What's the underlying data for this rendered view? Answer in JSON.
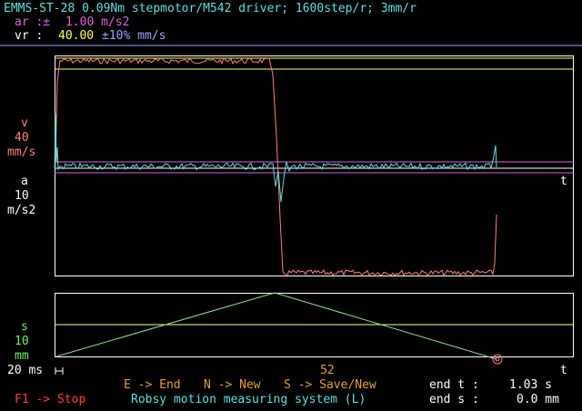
{
  "header": {
    "title": "EMMS-ST-28 0.09Nm stepmotor/M542 driver; 1600step/r; 3mm/r",
    "ar_label": "ar :±",
    "ar_value": "1.00 m/s2",
    "vr_label": "vr :",
    "vr_value": "40.00",
    "vr_tol": "±10% mm/s"
  },
  "plot_top": {
    "v_label": "v",
    "v_scale": "40",
    "v_unit": "mm/s",
    "a_label": "a",
    "a_scale": "10",
    "a_unit": "m/s2",
    "t_axis": "t"
  },
  "plot_bottom": {
    "s_label": "s",
    "s_scale": "10",
    "s_unit": "mm",
    "t_axis": "t",
    "time_scale": "20 ms",
    "marker_value": "52"
  },
  "footer": {
    "cmd_end": "E -> End",
    "cmd_new": "N -> New",
    "cmd_save": "S -> Save/New",
    "cmd_stop": "F1 -> Stop",
    "app_name": "Robsy motion measuring system (L)",
    "end_t_label": "end t :",
    "end_t_value": "1.03 s",
    "end_s_label": "end s :",
    "end_s_value": "0.0 mm"
  },
  "colors": {
    "background": "#000000",
    "frame": "#ffffff",
    "velocity": "#ff8080",
    "acceleration": "#5ee0e0",
    "position": "#90e090",
    "limit_yellow": "#ffff60",
    "limit_magenta": "#e060e0",
    "limit_lilac": "#9aa6ff"
  }
}
